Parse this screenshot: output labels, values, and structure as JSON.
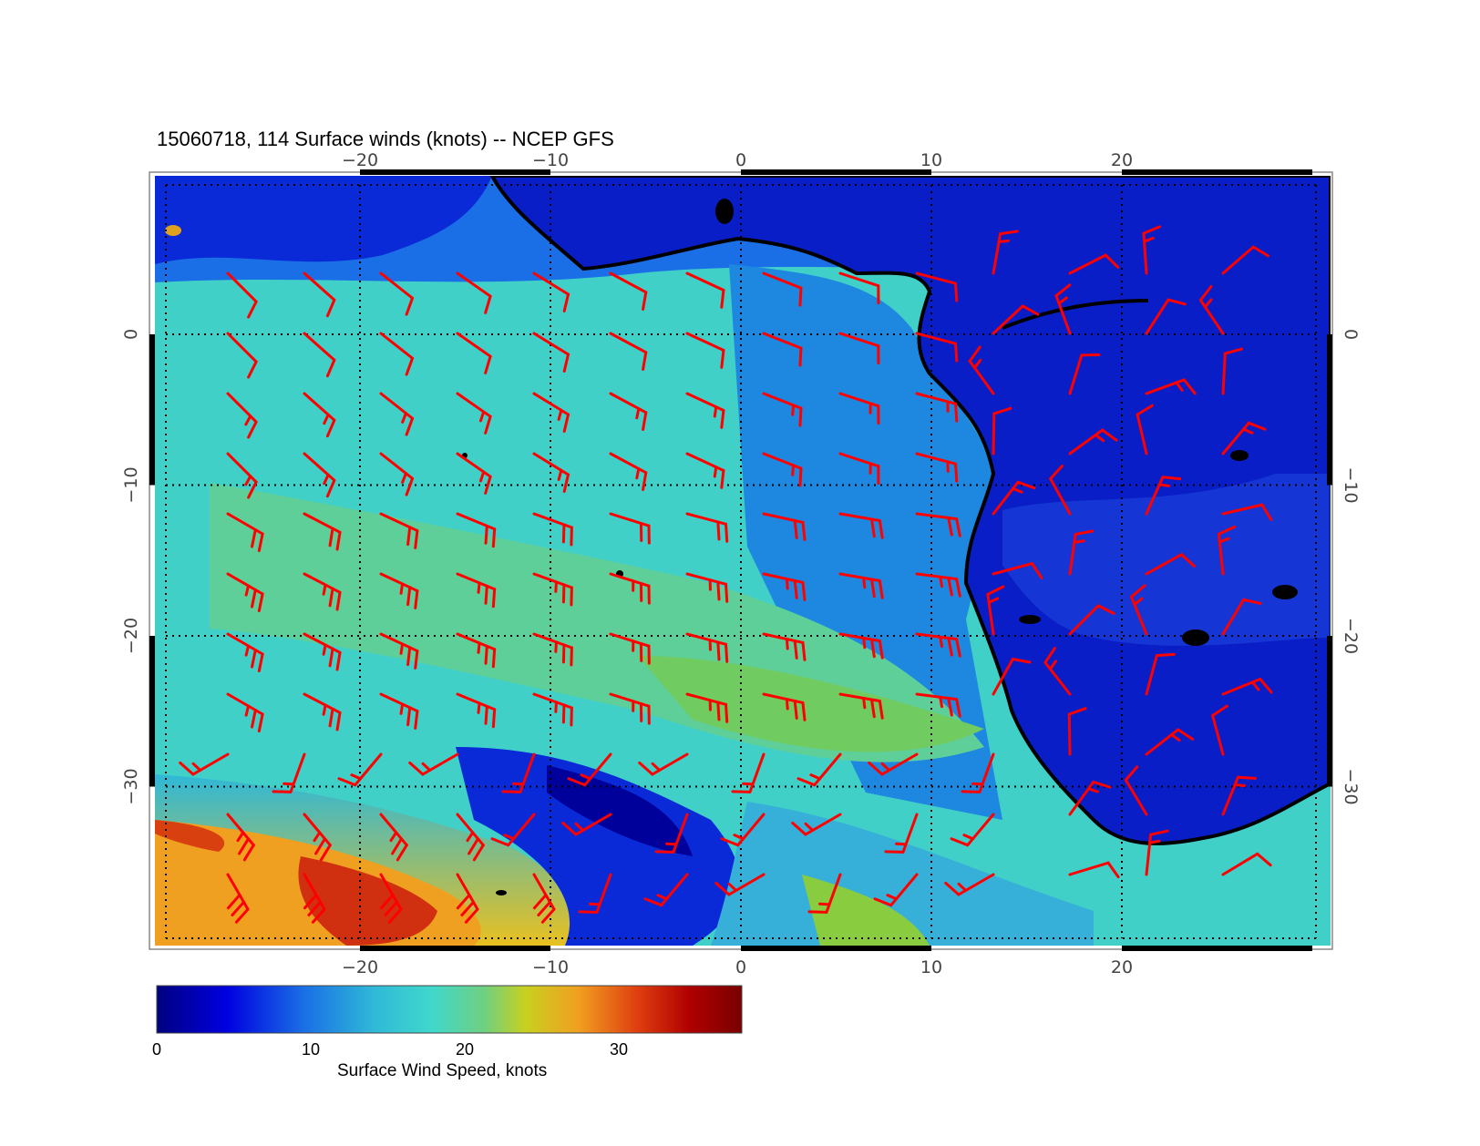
{
  "map": {
    "title": "15060718, 114 Surface winds (knots) -- NCEP GFS",
    "lon_ticks": [
      -20,
      -10,
      0,
      10,
      20
    ],
    "lat_ticks": [
      0,
      -10,
      -20,
      -30
    ],
    "lon_labels": [
      "−20",
      "−10",
      "0",
      "10",
      "20"
    ],
    "lat_labels": [
      "0",
      "−10",
      "−20",
      "−30"
    ],
    "lon_range": [
      -30,
      31
    ],
    "lat_range": [
      10,
      -41
    ],
    "wind_barb_color": "#ff0000",
    "coastline_color": "#000000",
    "grid": "dotted"
  },
  "colorbar": {
    "title": "Surface Wind Speed, knots",
    "ticks": [
      0,
      10,
      20,
      30
    ],
    "tick_labels": [
      "0",
      "10",
      "20",
      "30"
    ],
    "range": [
      0,
      38
    ],
    "colormap": [
      "#00007f",
      "#0000e0",
      "#1a6ee6",
      "#2fb8d8",
      "#40d8cc",
      "#6fd080",
      "#c8d020",
      "#f0a020",
      "#e04010",
      "#b00000",
      "#7a0000"
    ]
  }
}
